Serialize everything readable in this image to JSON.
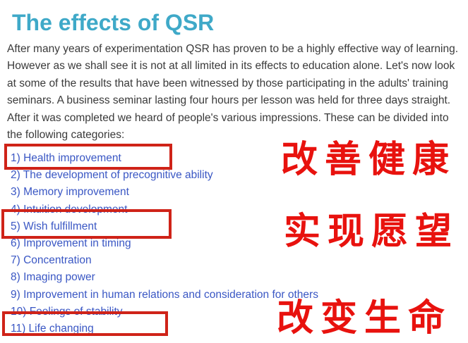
{
  "page": {
    "title": "The effects of QSR",
    "intro": "After many years of experimentation QSR has proven to be a highly effective way of learning. However as we shall see it is not at all limited in its effects to education alone. Let's now look at some of the results that have been witnessed by those participating in the adults' training seminars. A business seminar lasting four hours per lesson was held for three days straight. After it was completed we heard of people's various impressions. These can be divided into the following categories:"
  },
  "categories": [
    {
      "label": "1) Health improvement",
      "highlighted": true
    },
    {
      "label": "2) The development of precognitive ability",
      "highlighted": false
    },
    {
      "label": "3) Memory improvement",
      "highlighted": false
    },
    {
      "label": "4) Intuition development",
      "highlighted": false
    },
    {
      "label": "5) Wish fulfillment",
      "highlighted": true
    },
    {
      "label": "6) Improvement in timing",
      "highlighted": false
    },
    {
      "label": "7) Concentration",
      "highlighted": false
    },
    {
      "label": "8) Imaging power",
      "highlighted": false
    },
    {
      "label": "9) Improvement in human relations and consideration for others",
      "highlighted": false
    },
    {
      "label": "10) Feelings of stability",
      "highlighted": false
    },
    {
      "label": "11) Life changing",
      "highlighted": true
    }
  ],
  "annotations": [
    {
      "text": "改善健康"
    },
    {
      "text": "实现愿望"
    },
    {
      "text": "改变生命"
    }
  ],
  "colors": {
    "heading": "#3fa9c8",
    "link": "#3a57c4",
    "body_text": "#3a3a3a",
    "annotation_red": "#e8120e",
    "box_red": "#cf2318",
    "background": "#ffffff"
  }
}
